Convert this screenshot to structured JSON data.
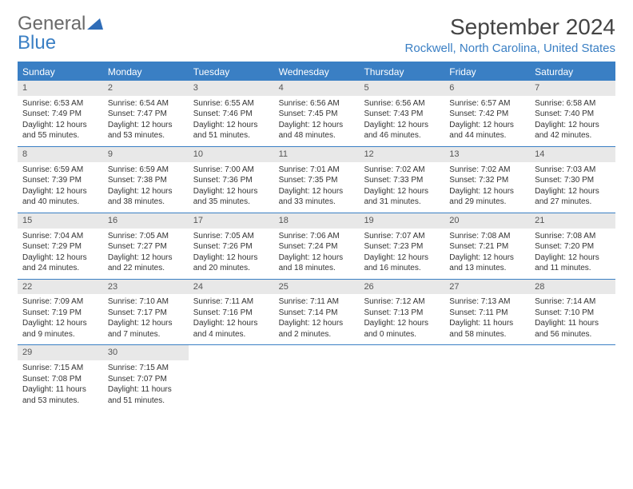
{
  "brand": {
    "part1": "General",
    "part2": "Blue"
  },
  "title": "September 2024",
  "location": "Rockwell, North Carolina, United States",
  "colors": {
    "accent": "#3a7fc4",
    "daynum_bg": "#e8e8e8",
    "text": "#333333",
    "bg": "#ffffff"
  },
  "weekdays": [
    "Sunday",
    "Monday",
    "Tuesday",
    "Wednesday",
    "Thursday",
    "Friday",
    "Saturday"
  ],
  "weeks": [
    [
      {
        "n": "1",
        "sr": "Sunrise: 6:53 AM",
        "ss": "Sunset: 7:49 PM",
        "dl": "Daylight: 12 hours and 55 minutes."
      },
      {
        "n": "2",
        "sr": "Sunrise: 6:54 AM",
        "ss": "Sunset: 7:47 PM",
        "dl": "Daylight: 12 hours and 53 minutes."
      },
      {
        "n": "3",
        "sr": "Sunrise: 6:55 AM",
        "ss": "Sunset: 7:46 PM",
        "dl": "Daylight: 12 hours and 51 minutes."
      },
      {
        "n": "4",
        "sr": "Sunrise: 6:56 AM",
        "ss": "Sunset: 7:45 PM",
        "dl": "Daylight: 12 hours and 48 minutes."
      },
      {
        "n": "5",
        "sr": "Sunrise: 6:56 AM",
        "ss": "Sunset: 7:43 PM",
        "dl": "Daylight: 12 hours and 46 minutes."
      },
      {
        "n": "6",
        "sr": "Sunrise: 6:57 AM",
        "ss": "Sunset: 7:42 PM",
        "dl": "Daylight: 12 hours and 44 minutes."
      },
      {
        "n": "7",
        "sr": "Sunrise: 6:58 AM",
        "ss": "Sunset: 7:40 PM",
        "dl": "Daylight: 12 hours and 42 minutes."
      }
    ],
    [
      {
        "n": "8",
        "sr": "Sunrise: 6:59 AM",
        "ss": "Sunset: 7:39 PM",
        "dl": "Daylight: 12 hours and 40 minutes."
      },
      {
        "n": "9",
        "sr": "Sunrise: 6:59 AM",
        "ss": "Sunset: 7:38 PM",
        "dl": "Daylight: 12 hours and 38 minutes."
      },
      {
        "n": "10",
        "sr": "Sunrise: 7:00 AM",
        "ss": "Sunset: 7:36 PM",
        "dl": "Daylight: 12 hours and 35 minutes."
      },
      {
        "n": "11",
        "sr": "Sunrise: 7:01 AM",
        "ss": "Sunset: 7:35 PM",
        "dl": "Daylight: 12 hours and 33 minutes."
      },
      {
        "n": "12",
        "sr": "Sunrise: 7:02 AM",
        "ss": "Sunset: 7:33 PM",
        "dl": "Daylight: 12 hours and 31 minutes."
      },
      {
        "n": "13",
        "sr": "Sunrise: 7:02 AM",
        "ss": "Sunset: 7:32 PM",
        "dl": "Daylight: 12 hours and 29 minutes."
      },
      {
        "n": "14",
        "sr": "Sunrise: 7:03 AM",
        "ss": "Sunset: 7:30 PM",
        "dl": "Daylight: 12 hours and 27 minutes."
      }
    ],
    [
      {
        "n": "15",
        "sr": "Sunrise: 7:04 AM",
        "ss": "Sunset: 7:29 PM",
        "dl": "Daylight: 12 hours and 24 minutes."
      },
      {
        "n": "16",
        "sr": "Sunrise: 7:05 AM",
        "ss": "Sunset: 7:27 PM",
        "dl": "Daylight: 12 hours and 22 minutes."
      },
      {
        "n": "17",
        "sr": "Sunrise: 7:05 AM",
        "ss": "Sunset: 7:26 PM",
        "dl": "Daylight: 12 hours and 20 minutes."
      },
      {
        "n": "18",
        "sr": "Sunrise: 7:06 AM",
        "ss": "Sunset: 7:24 PM",
        "dl": "Daylight: 12 hours and 18 minutes."
      },
      {
        "n": "19",
        "sr": "Sunrise: 7:07 AM",
        "ss": "Sunset: 7:23 PM",
        "dl": "Daylight: 12 hours and 16 minutes."
      },
      {
        "n": "20",
        "sr": "Sunrise: 7:08 AM",
        "ss": "Sunset: 7:21 PM",
        "dl": "Daylight: 12 hours and 13 minutes."
      },
      {
        "n": "21",
        "sr": "Sunrise: 7:08 AM",
        "ss": "Sunset: 7:20 PM",
        "dl": "Daylight: 12 hours and 11 minutes."
      }
    ],
    [
      {
        "n": "22",
        "sr": "Sunrise: 7:09 AM",
        "ss": "Sunset: 7:19 PM",
        "dl": "Daylight: 12 hours and 9 minutes."
      },
      {
        "n": "23",
        "sr": "Sunrise: 7:10 AM",
        "ss": "Sunset: 7:17 PM",
        "dl": "Daylight: 12 hours and 7 minutes."
      },
      {
        "n": "24",
        "sr": "Sunrise: 7:11 AM",
        "ss": "Sunset: 7:16 PM",
        "dl": "Daylight: 12 hours and 4 minutes."
      },
      {
        "n": "25",
        "sr": "Sunrise: 7:11 AM",
        "ss": "Sunset: 7:14 PM",
        "dl": "Daylight: 12 hours and 2 minutes."
      },
      {
        "n": "26",
        "sr": "Sunrise: 7:12 AM",
        "ss": "Sunset: 7:13 PM",
        "dl": "Daylight: 12 hours and 0 minutes."
      },
      {
        "n": "27",
        "sr": "Sunrise: 7:13 AM",
        "ss": "Sunset: 7:11 PM",
        "dl": "Daylight: 11 hours and 58 minutes."
      },
      {
        "n": "28",
        "sr": "Sunrise: 7:14 AM",
        "ss": "Sunset: 7:10 PM",
        "dl": "Daylight: 11 hours and 56 minutes."
      }
    ],
    [
      {
        "n": "29",
        "sr": "Sunrise: 7:15 AM",
        "ss": "Sunset: 7:08 PM",
        "dl": "Daylight: 11 hours and 53 minutes."
      },
      {
        "n": "30",
        "sr": "Sunrise: 7:15 AM",
        "ss": "Sunset: 7:07 PM",
        "dl": "Daylight: 11 hours and 51 minutes."
      },
      {
        "empty": true
      },
      {
        "empty": true
      },
      {
        "empty": true
      },
      {
        "empty": true
      },
      {
        "empty": true
      }
    ]
  ]
}
